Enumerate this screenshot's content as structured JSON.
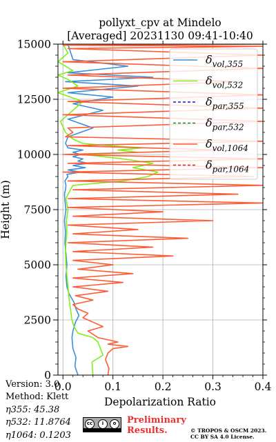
{
  "chart_data": {
    "type": "line",
    "title_line1": "pollyxt_cpv at Mindelo",
    "title_line2": "[Averaged] 20231130 09:41-10:40",
    "xlabel": "Depolarization Ratio",
    "ylabel": "Height (m)",
    "xlim": [
      -0.01,
      0.4
    ],
    "ylim": [
      0,
      15000
    ],
    "xticks": [
      0.0,
      0.1,
      0.2,
      0.3,
      0.4
    ],
    "xtick_labels": [
      "0.0",
      "0.1",
      "0.2",
      "0.3",
      "0.4"
    ],
    "yticks": [
      0,
      2500,
      5000,
      7500,
      10000,
      12500,
      15000
    ],
    "ytick_labels": [
      "0",
      "2500",
      "5000",
      "7500",
      "10000",
      "12500",
      "15000"
    ],
    "grid": true,
    "legend_position": "top-right",
    "series": [
      {
        "name": "δvol,355",
        "color": "#3a8fd9",
        "style": "solid",
        "x": [
          0.03,
          0.024,
          0.026,
          0.02,
          0.018,
          0.02,
          0.025,
          0.032,
          0.026,
          0.022,
          0.012,
          0.008,
          0.006,
          0.008,
          0.006,
          0.004,
          0.005,
          0.003,
          0.006,
          0.004,
          0.003,
          0.005,
          0.006,
          0.004,
          0.01,
          0.008,
          0.035,
          0.01,
          0.045,
          0.02,
          0.05,
          0.03,
          0.04,
          0.02,
          0.035,
          0.02,
          0.04,
          0.01,
          0.005,
          0.01,
          0.06,
          0.01,
          0.08,
          0.02,
          0.1,
          0.01,
          0.15,
          0.005,
          0.18,
          0.01,
          0.13,
          0.02,
          0.01
        ],
        "y": [
          0,
          400,
          800,
          1200,
          1700,
          2000,
          2400,
          2700,
          3000,
          3300,
          3700,
          4000,
          4500,
          5000,
          5500,
          6000,
          6500,
          7000,
          7500,
          7900,
          8200,
          8400,
          8600,
          8800,
          9000,
          9100,
          9200,
          9300,
          9400,
          9500,
          9600,
          9700,
          9800,
          9900,
          10000,
          10100,
          10200,
          10300,
          10500,
          10800,
          11200,
          11600,
          12000,
          12300,
          12600,
          12800,
          13100,
          13300,
          13500,
          13700,
          14000,
          14300,
          15000
        ]
      },
      {
        "name": "δvol,532",
        "color": "#7ff01a",
        "style": "solid",
        "x": [
          0.06,
          0.058,
          0.08,
          0.075,
          0.07,
          0.06,
          0.03,
          0.022,
          0.018,
          0.015,
          0.012,
          0.01,
          0.008,
          0.006,
          0.005,
          0.006,
          0.008,
          0.007,
          0.01,
          0.006,
          0.015,
          0.02,
          0.12,
          0.17,
          0.19,
          0.14,
          0.18,
          0.12,
          0.08,
          0.04,
          0.15,
          0.11,
          0.16,
          0.09,
          0.04,
          0.02,
          0.005,
          -0.005,
          0.02,
          0.04,
          -0.01,
          0.03,
          0.01,
          -0.01,
          0.02,
          -0.01,
          0.01,
          0.0
        ],
        "y": [
          0,
          600,
          900,
          1200,
          1500,
          1700,
          1900,
          2200,
          2500,
          3000,
          3500,
          4000,
          4500,
          5000,
          5500,
          6000,
          6500,
          7000,
          7500,
          8000,
          8400,
          8600,
          8800,
          9000,
          9200,
          9400,
          9600,
          9800,
          9900,
          10000,
          10100,
          10200,
          10300,
          10400,
          10500,
          10700,
          11000,
          11500,
          12000,
          12400,
          12800,
          13100,
          13400,
          13600,
          13800,
          14200,
          14600,
          15000
        ]
      },
      {
        "name": "δpar,355",
        "color": "#1010e0",
        "style": "dashed",
        "x": [],
        "y": []
      },
      {
        "name": "δpar,532",
        "color": "#1a8a2a",
        "style": "dashed",
        "x": [],
        "y": []
      },
      {
        "name": "δvol,1064",
        "color": "#ff5a33",
        "style": "solid",
        "x": [
          0.09,
          0.092,
          0.085,
          0.09,
          0.1,
          0.13,
          0.09,
          0.11,
          0.07,
          0.05,
          0.08,
          0.06,
          0.04,
          0.05,
          0.03,
          0.02,
          0.06,
          0.025,
          0.09,
          0.02,
          0.12,
          0.02,
          0.14,
          0.03,
          0.1,
          0.02,
          0.22,
          0.02,
          0.18,
          0.01,
          0.25,
          0.02,
          0.15,
          0.01,
          0.3,
          0.02,
          0.2,
          0.01,
          0.4,
          0.01,
          0.35,
          0.02,
          0.4,
          0.01,
          0.38,
          0.0,
          0.4,
          0.01,
          0.4,
          0.0,
          0.32,
          0.01,
          0.4,
          0.005,
          0.02,
          0.01,
          0.4,
          0.0,
          0.4,
          0.01,
          0.4,
          0.0,
          0.35,
          0.01,
          0.4,
          0.0,
          0.4,
          0.01,
          0.4,
          0.0,
          0.4
        ],
        "y": [
          0,
          300,
          700,
          1000,
          1200,
          1300,
          1400,
          1500,
          1700,
          2000,
          2200,
          2400,
          2600,
          2800,
          3000,
          3200,
          3400,
          3600,
          3800,
          4000,
          4200,
          4400,
          4600,
          4800,
          5000,
          5200,
          5400,
          5600,
          5800,
          6000,
          6200,
          6400,
          6600,
          6800,
          7000,
          7200,
          7400,
          7600,
          7800,
          8000,
          8200,
          8400,
          8600,
          8800,
          9000,
          9200,
          9400,
          9600,
          9800,
          10000,
          10200,
          10400,
          10600,
          10800,
          11000,
          11200,
          11500,
          11800,
          12100,
          12400,
          12700,
          13000,
          13300,
          13600,
          13900,
          14200,
          14500,
          14800,
          14900,
          14950,
          15000
        ]
      },
      {
        "name": "δpar,1064",
        "color": "#e02020",
        "style": "dashed",
        "x": [],
        "y": []
      }
    ]
  },
  "info": {
    "version": "Version: 3.0",
    "method": "Method: Klett",
    "eta355": "η355:  45.38",
    "eta532": "η532: 11.8764",
    "eta1064": "η1064: 0.1203"
  },
  "footer": {
    "preliminary_line1": "Preliminary",
    "preliminary_line2": "Results.",
    "copyright_line1": "© TROPOS & OSCM 2023.",
    "copyright_line2": "CC BY SA 4.0 License."
  }
}
